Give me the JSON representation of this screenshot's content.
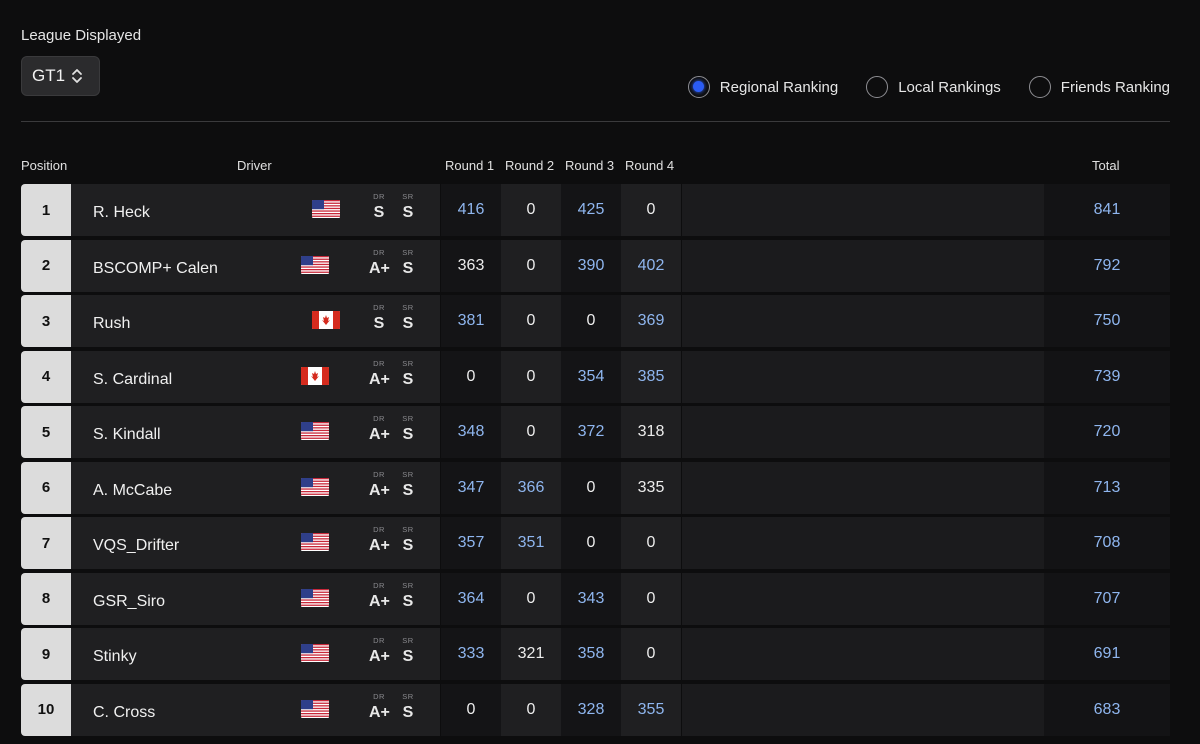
{
  "league": {
    "label": "League Displayed",
    "selected": "GT1"
  },
  "ranking_options": [
    {
      "label": "Regional Ranking",
      "selected": true
    },
    {
      "label": "Local Rankings",
      "selected": false
    },
    {
      "label": "Friends Ranking",
      "selected": false
    }
  ],
  "table": {
    "headers": {
      "position": "Position",
      "driver": "Driver",
      "round1": "Round 1",
      "round2": "Round 2",
      "round3": "Round 3",
      "round4": "Round 4",
      "total": "Total"
    },
    "rating_labels": {
      "dr": "DR",
      "sr": "SR"
    },
    "rows": [
      {
        "position": "1",
        "name": "R. Heck",
        "flag": "us-flag-icon",
        "dr": "S",
        "sr": "S",
        "r1": "416",
        "r2": "0",
        "r3": "425",
        "r4": "0",
        "total": "841"
      },
      {
        "position": "2",
        "name": "BSCOMP+ Calen",
        "flag": "us-flag-icon",
        "dr": "A+",
        "sr": "S",
        "r1": "363",
        "r2": "0",
        "r3": "390",
        "r4": "402",
        "total": "792"
      },
      {
        "position": "3",
        "name": "Rush",
        "flag": "canada-flag-icon",
        "dr": "S",
        "sr": "S",
        "r1": "381",
        "r2": "0",
        "r3": "0",
        "r4": "369",
        "total": "750"
      },
      {
        "position": "4",
        "name": "S. Cardinal",
        "flag": "canada-flag-icon",
        "dr": "A+",
        "sr": "S",
        "r1": "0",
        "r2": "0",
        "r3": "354",
        "r4": "385",
        "total": "739"
      },
      {
        "position": "5",
        "name": "S. Kindall",
        "flag": "us-flag-icon",
        "dr": "A+",
        "sr": "S",
        "r1": "348",
        "r2": "0",
        "r3": "372",
        "r4": "318",
        "total": "720"
      },
      {
        "position": "6",
        "name": "A. McCabe",
        "flag": "us-flag-icon",
        "dr": "A+",
        "sr": "S",
        "r1": "347",
        "r2": "366",
        "r3": "0",
        "r4": "335",
        "total": "713"
      },
      {
        "position": "7",
        "name": "VQS_Drifter",
        "flag": "us-flag-icon",
        "dr": "A+",
        "sr": "S",
        "r1": "357",
        "r2": "351",
        "r3": "0",
        "r4": "0",
        "total": "708"
      },
      {
        "position": "8",
        "name": "GSR_Siro",
        "flag": "us-flag-icon",
        "dr": "A+",
        "sr": "S",
        "r1": "364",
        "r2": "0",
        "r3": "343",
        "r4": "0",
        "total": "707"
      },
      {
        "position": "9",
        "name": "Stinky",
        "flag": "us-flag-icon",
        "dr": "A+",
        "sr": "S",
        "r1": "333",
        "r2": "321",
        "r3": "358",
        "r4": "0",
        "total": "691"
      },
      {
        "position": "10",
        "name": "C. Cross",
        "flag": "us-flag-icon",
        "dr": "A+",
        "sr": "S",
        "r1": "0",
        "r2": "0",
        "r3": "328",
        "r4": "355",
        "total": "683"
      }
    ]
  },
  "colors": {
    "accent": "#2b5cf4",
    "score_blue": "#8fb6ef"
  }
}
